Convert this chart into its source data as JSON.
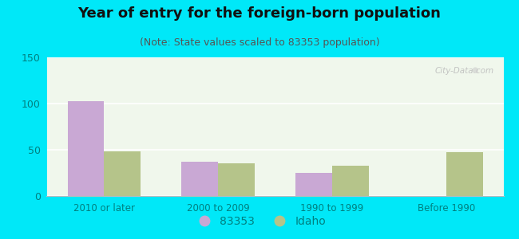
{
  "title": "Year of entry for the foreign-born population",
  "subtitle": "(Note: State values scaled to 83353 population)",
  "categories": [
    "2010 or later",
    "2000 to 2009",
    "1990 to 1999",
    "Before 1990"
  ],
  "series_83353": [
    103,
    37,
    25,
    0
  ],
  "series_idaho": [
    48,
    35,
    33,
    47
  ],
  "color_83353": "#c9a8d4",
  "color_idaho": "#b5c48a",
  "ylim": [
    0,
    150
  ],
  "yticks": [
    0,
    50,
    100,
    150
  ],
  "background_outer": "#00e8f8",
  "title_fontsize": 13,
  "subtitle_fontsize": 9,
  "tick_label_color": "#008080",
  "axis_label_color": "#008080",
  "bar_width": 0.32,
  "legend_label_83353": "83353",
  "legend_label_idaho": "Idaho",
  "legend_fontsize": 10,
  "watermark": "City-Data.com"
}
